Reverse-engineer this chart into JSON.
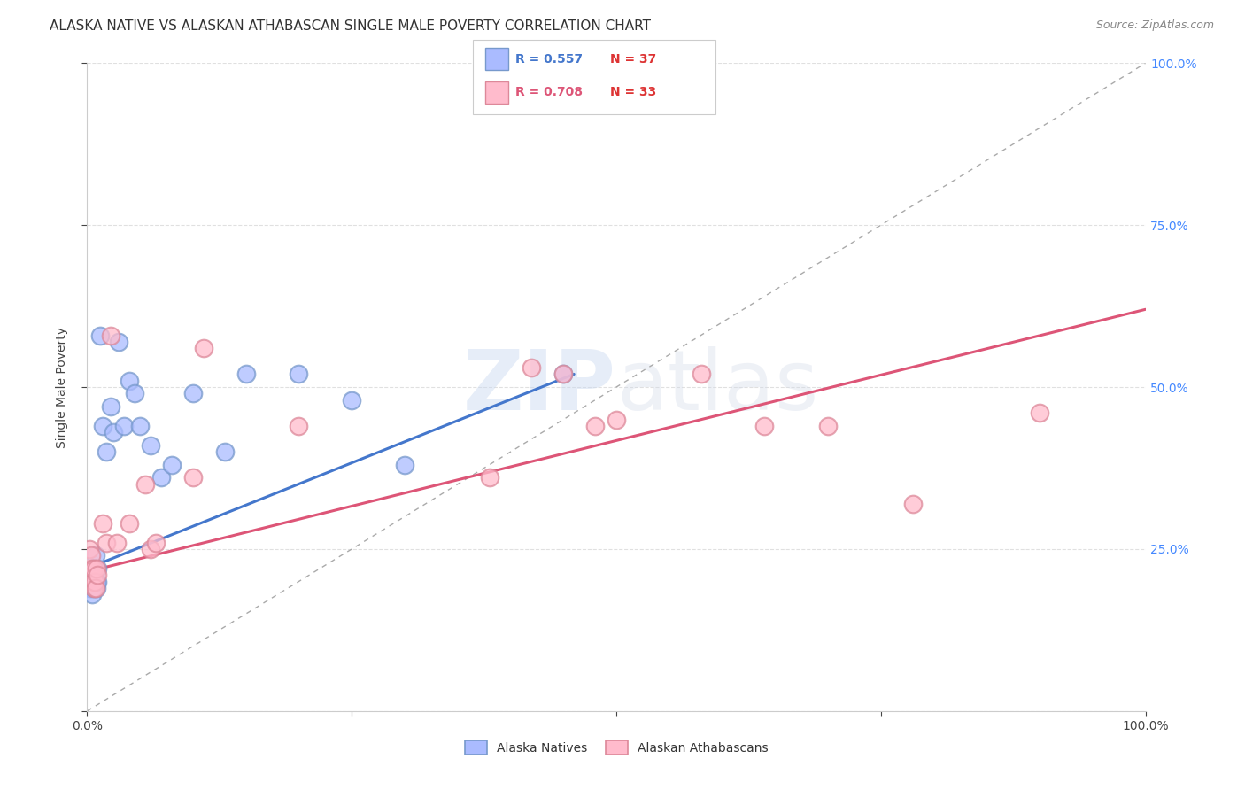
{
  "title": "ALASKA NATIVE VS ALASKAN ATHABASCAN SINGLE MALE POVERTY CORRELATION CHART",
  "source": "Source: ZipAtlas.com",
  "ylabel": "Single Male Poverty",
  "watermark_zip": "ZIP",
  "watermark_atlas": "atlas",
  "background_color": "#ffffff",
  "grid_color": "#dddddd",
  "an_scatter_face": "#aabbff",
  "an_scatter_edge": "#7799cc",
  "aa_scatter_face": "#ffbbcc",
  "aa_scatter_edge": "#dd8899",
  "blue_line_color": "#4477cc",
  "pink_line_color": "#dd5577",
  "gray_dash_color": "#aaaaaa",
  "right_tick_color": "#4488ff",
  "legend_R1_color": "#4477cc",
  "legend_N1_color": "#dd3333",
  "legend_R2_color": "#dd5577",
  "legend_N2_color": "#dd3333",
  "an_x": [
    0.002,
    0.003,
    0.004,
    0.004,
    0.005,
    0.005,
    0.005,
    0.006,
    0.006,
    0.007,
    0.007,
    0.008,
    0.008,
    0.009,
    0.009,
    0.01,
    0.01,
    0.012,
    0.015,
    0.018,
    0.022,
    0.025,
    0.03,
    0.035,
    0.04,
    0.045,
    0.05,
    0.06,
    0.07,
    0.08,
    0.1,
    0.13,
    0.15,
    0.2,
    0.25,
    0.3,
    0.45
  ],
  "an_y": [
    0.21,
    0.19,
    0.21,
    0.19,
    0.22,
    0.2,
    0.18,
    0.21,
    0.19,
    0.22,
    0.2,
    0.24,
    0.22,
    0.2,
    0.19,
    0.22,
    0.2,
    0.58,
    0.44,
    0.4,
    0.47,
    0.43,
    0.57,
    0.44,
    0.51,
    0.49,
    0.44,
    0.41,
    0.36,
    0.38,
    0.49,
    0.4,
    0.52,
    0.52,
    0.48,
    0.38,
    0.52
  ],
  "aa_x": [
    0.002,
    0.003,
    0.004,
    0.004,
    0.005,
    0.005,
    0.006,
    0.006,
    0.007,
    0.008,
    0.009,
    0.01,
    0.015,
    0.018,
    0.022,
    0.028,
    0.04,
    0.055,
    0.06,
    0.065,
    0.1,
    0.11,
    0.2,
    0.38,
    0.42,
    0.45,
    0.48,
    0.5,
    0.58,
    0.64,
    0.7,
    0.78,
    0.9
  ],
  "aa_y": [
    0.25,
    0.22,
    0.24,
    0.21,
    0.2,
    0.22,
    0.19,
    0.22,
    0.2,
    0.19,
    0.22,
    0.21,
    0.29,
    0.26,
    0.58,
    0.26,
    0.29,
    0.35,
    0.25,
    0.26,
    0.36,
    0.56,
    0.44,
    0.36,
    0.53,
    0.52,
    0.44,
    0.45,
    0.52,
    0.44,
    0.44,
    0.32,
    0.46
  ],
  "blue_line_x0": 0.0,
  "blue_line_y0": 0.22,
  "blue_line_x1": 0.46,
  "blue_line_y1": 0.52,
  "pink_line_x0": 0.0,
  "pink_line_y0": 0.215,
  "pink_line_x1": 1.0,
  "pink_line_y1": 0.62,
  "xlim": [
    0,
    1.0
  ],
  "ylim": [
    0,
    1.0
  ],
  "title_fontsize": 11,
  "tick_fontsize": 10,
  "source_fontsize": 9
}
